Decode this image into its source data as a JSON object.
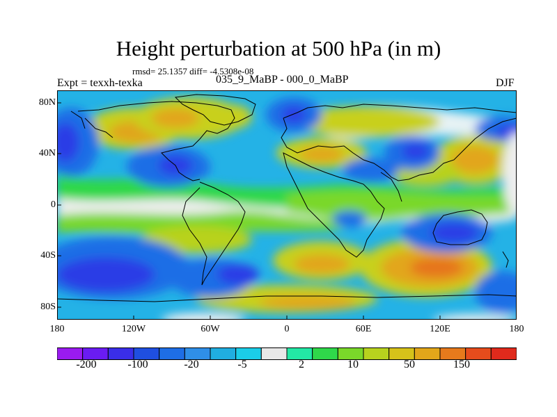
{
  "figure": {
    "title": "Height perturbation at 500 hPa (in m)",
    "stats": "rmsd= 25.1357 diff= -4.5308e-08",
    "left_label": "Expt = texxh-texka",
    "center_label": "035_9_MaBP - 000_0_MaBP",
    "right_label": "DJF"
  },
  "map_axes": {
    "projection": "cylindrical equidistant",
    "lon_range": [
      -180,
      180
    ],
    "lat_range": [
      -90,
      90
    ],
    "x_ticks": [
      "180",
      "120W",
      "60W",
      "0",
      "60E",
      "120E",
      "180"
    ],
    "y_ticks": [
      "80N",
      "40N",
      "0",
      "40S",
      "80S"
    ]
  },
  "colorbar": {
    "labels": [
      "-200",
      "-100",
      "-20",
      "-5",
      "2",
      "10",
      "50",
      "150"
    ],
    "colors": [
      "#9a1bf0",
      "#6a1cf2",
      "#3a2ee8",
      "#1f4fe0",
      "#1e6ee6",
      "#2f8fe8",
      "#20aee0",
      "#1bcde8",
      "#e8e8e8",
      "#23e8a5",
      "#2fd84a",
      "#7ad82a",
      "#b8d21e",
      "#d6c21a",
      "#e2a61a",
      "#e67a1c",
      "#e64c1c",
      "#e02a1c"
    ]
  }
}
